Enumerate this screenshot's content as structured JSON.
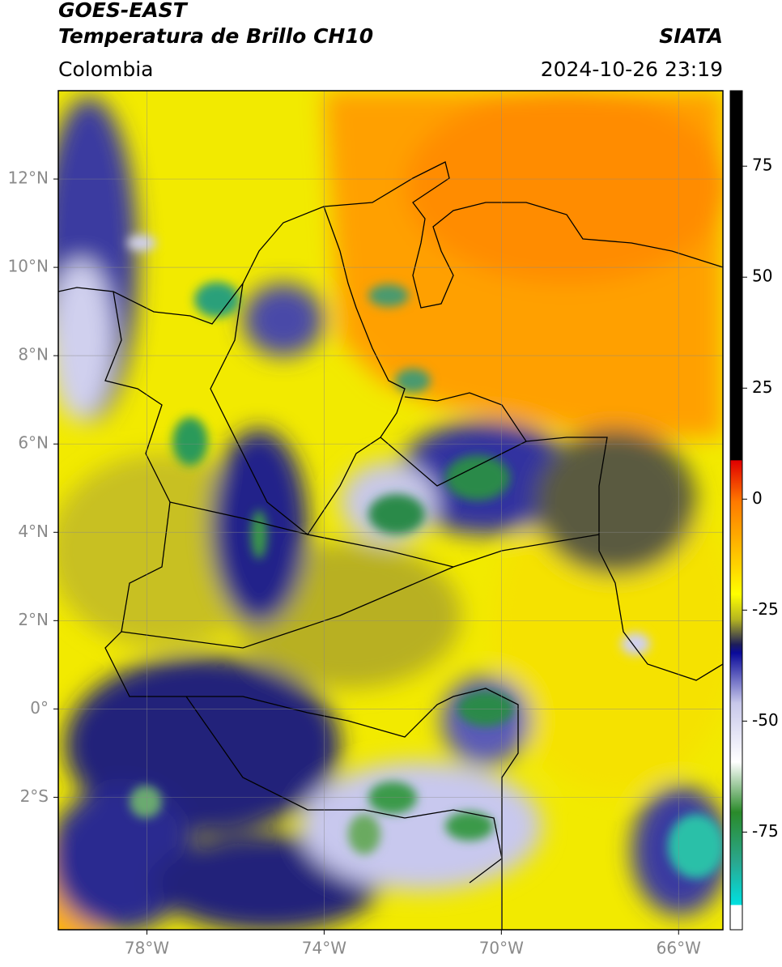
{
  "header": {
    "title": "GOES-EAST",
    "subtitle": "Temperatura de Brillo CH10",
    "source": "SIATA",
    "region": "Colombia",
    "datetime": "2024-10-26 23:19"
  },
  "map": {
    "lon_lim": [
      -80,
      -65
    ],
    "lat_lim": [
      -5,
      14
    ],
    "lon_ticks": [
      {
        "value": -78,
        "label": "78°W"
      },
      {
        "value": -74,
        "label": "74°W"
      },
      {
        "value": -70,
        "label": "70°W"
      },
      {
        "value": -66,
        "label": "66°W"
      }
    ],
    "lat_ticks": [
      {
        "value": 12,
        "label": "12°N"
      },
      {
        "value": 10,
        "label": "10°N"
      },
      {
        "value": 8,
        "label": "8°N"
      },
      {
        "value": 6,
        "label": "6°N"
      },
      {
        "value": 4,
        "label": "4°N"
      },
      {
        "value": 2,
        "label": "2°N"
      },
      {
        "value": 0,
        "label": "0°"
      },
      {
        "value": -2,
        "label": "2°S"
      }
    ]
  },
  "colorbar": {
    "lim": [
      -97,
      92
    ],
    "ticks": [
      75,
      50,
      25,
      0,
      -25,
      -50,
      -75
    ]
  }
}
